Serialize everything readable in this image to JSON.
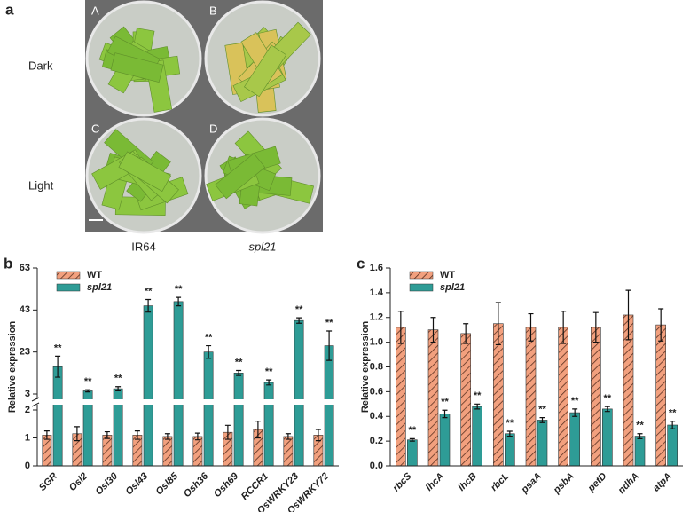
{
  "panel_a": {
    "label": "a",
    "dish_labels": [
      "A",
      "B",
      "C",
      "D"
    ],
    "row_labels": [
      "Dark",
      "Light"
    ],
    "column_labels": [
      "IR64",
      "spl21"
    ]
  },
  "chart_data": [
    {
      "type": "bar",
      "panel_label": "b",
      "y_label": "Relative expression",
      "categories": [
        "SGR",
        "Osl2",
        "Osl30",
        "Osl43",
        "Osl85",
        "Osh36",
        "Osh69",
        "RCCR1",
        "OsWRKY23",
        "OsWRKY72"
      ],
      "series": [
        {
          "name": "WT",
          "color": "#f2a07e",
          "hatch": true,
          "values": [
            1.1,
            1.15,
            1.1,
            1.1,
            1.05,
            1.05,
            1.2,
            1.3,
            1.05,
            1.1
          ],
          "errors": [
            0.15,
            0.25,
            0.12,
            0.15,
            0.1,
            0.12,
            0.25,
            0.3,
            0.1,
            0.2
          ]
        },
        {
          "name": "spl21",
          "color": "#2e9c96",
          "hatch": false,
          "values": [
            16,
            4.5,
            5.5,
            45,
            47,
            23,
            13,
            8.5,
            38,
            26
          ],
          "errors": [
            5,
            0.5,
            1,
            3,
            2,
            3,
            1.2,
            1.2,
            1.3,
            7
          ],
          "significance": [
            "**",
            "**",
            "**",
            "**",
            "**",
            "**",
            "**",
            "**",
            "**",
            "**"
          ]
        }
      ],
      "ylim": [
        0,
        63
      ],
      "ybreak": [
        2,
        3
      ],
      "yticks": [
        0,
        1,
        2,
        3,
        23,
        43,
        63
      ],
      "legend": "upper left"
    },
    {
      "type": "bar",
      "panel_label": "c",
      "y_label": "Relative expression",
      "categories": [
        "rbcS",
        "lhcA",
        "lhcB",
        "rbcL",
        "psaA",
        "psbA",
        "petD",
        "ndhA",
        "atpA"
      ],
      "series": [
        {
          "name": "WT",
          "color": "#f2a07e",
          "hatch": true,
          "values": [
            1.12,
            1.1,
            1.07,
            1.15,
            1.12,
            1.12,
            1.12,
            1.22,
            1.14
          ],
          "errors": [
            0.13,
            0.1,
            0.08,
            0.17,
            0.11,
            0.13,
            0.12,
            0.2,
            0.13
          ]
        },
        {
          "name": "spl21",
          "color": "#2e9c96",
          "hatch": false,
          "values": [
            0.21,
            0.42,
            0.48,
            0.26,
            0.37,
            0.43,
            0.46,
            0.24,
            0.33
          ],
          "errors": [
            0.01,
            0.03,
            0.02,
            0.02,
            0.02,
            0.03,
            0.02,
            0.02,
            0.03
          ],
          "significance": [
            "**",
            "**",
            "**",
            "**",
            "**",
            "**",
            "**",
            "**",
            "**"
          ]
        }
      ],
      "ylim": [
        0,
        1.6
      ],
      "yticks": [
        {
          "value": 0,
          "label": "0.0"
        },
        0.2,
        0.4,
        0.6,
        0.8,
        {
          "value": 1,
          "label": "1.0"
        },
        1.2,
        1.4,
        1.6
      ],
      "legend": "upper left"
    }
  ]
}
